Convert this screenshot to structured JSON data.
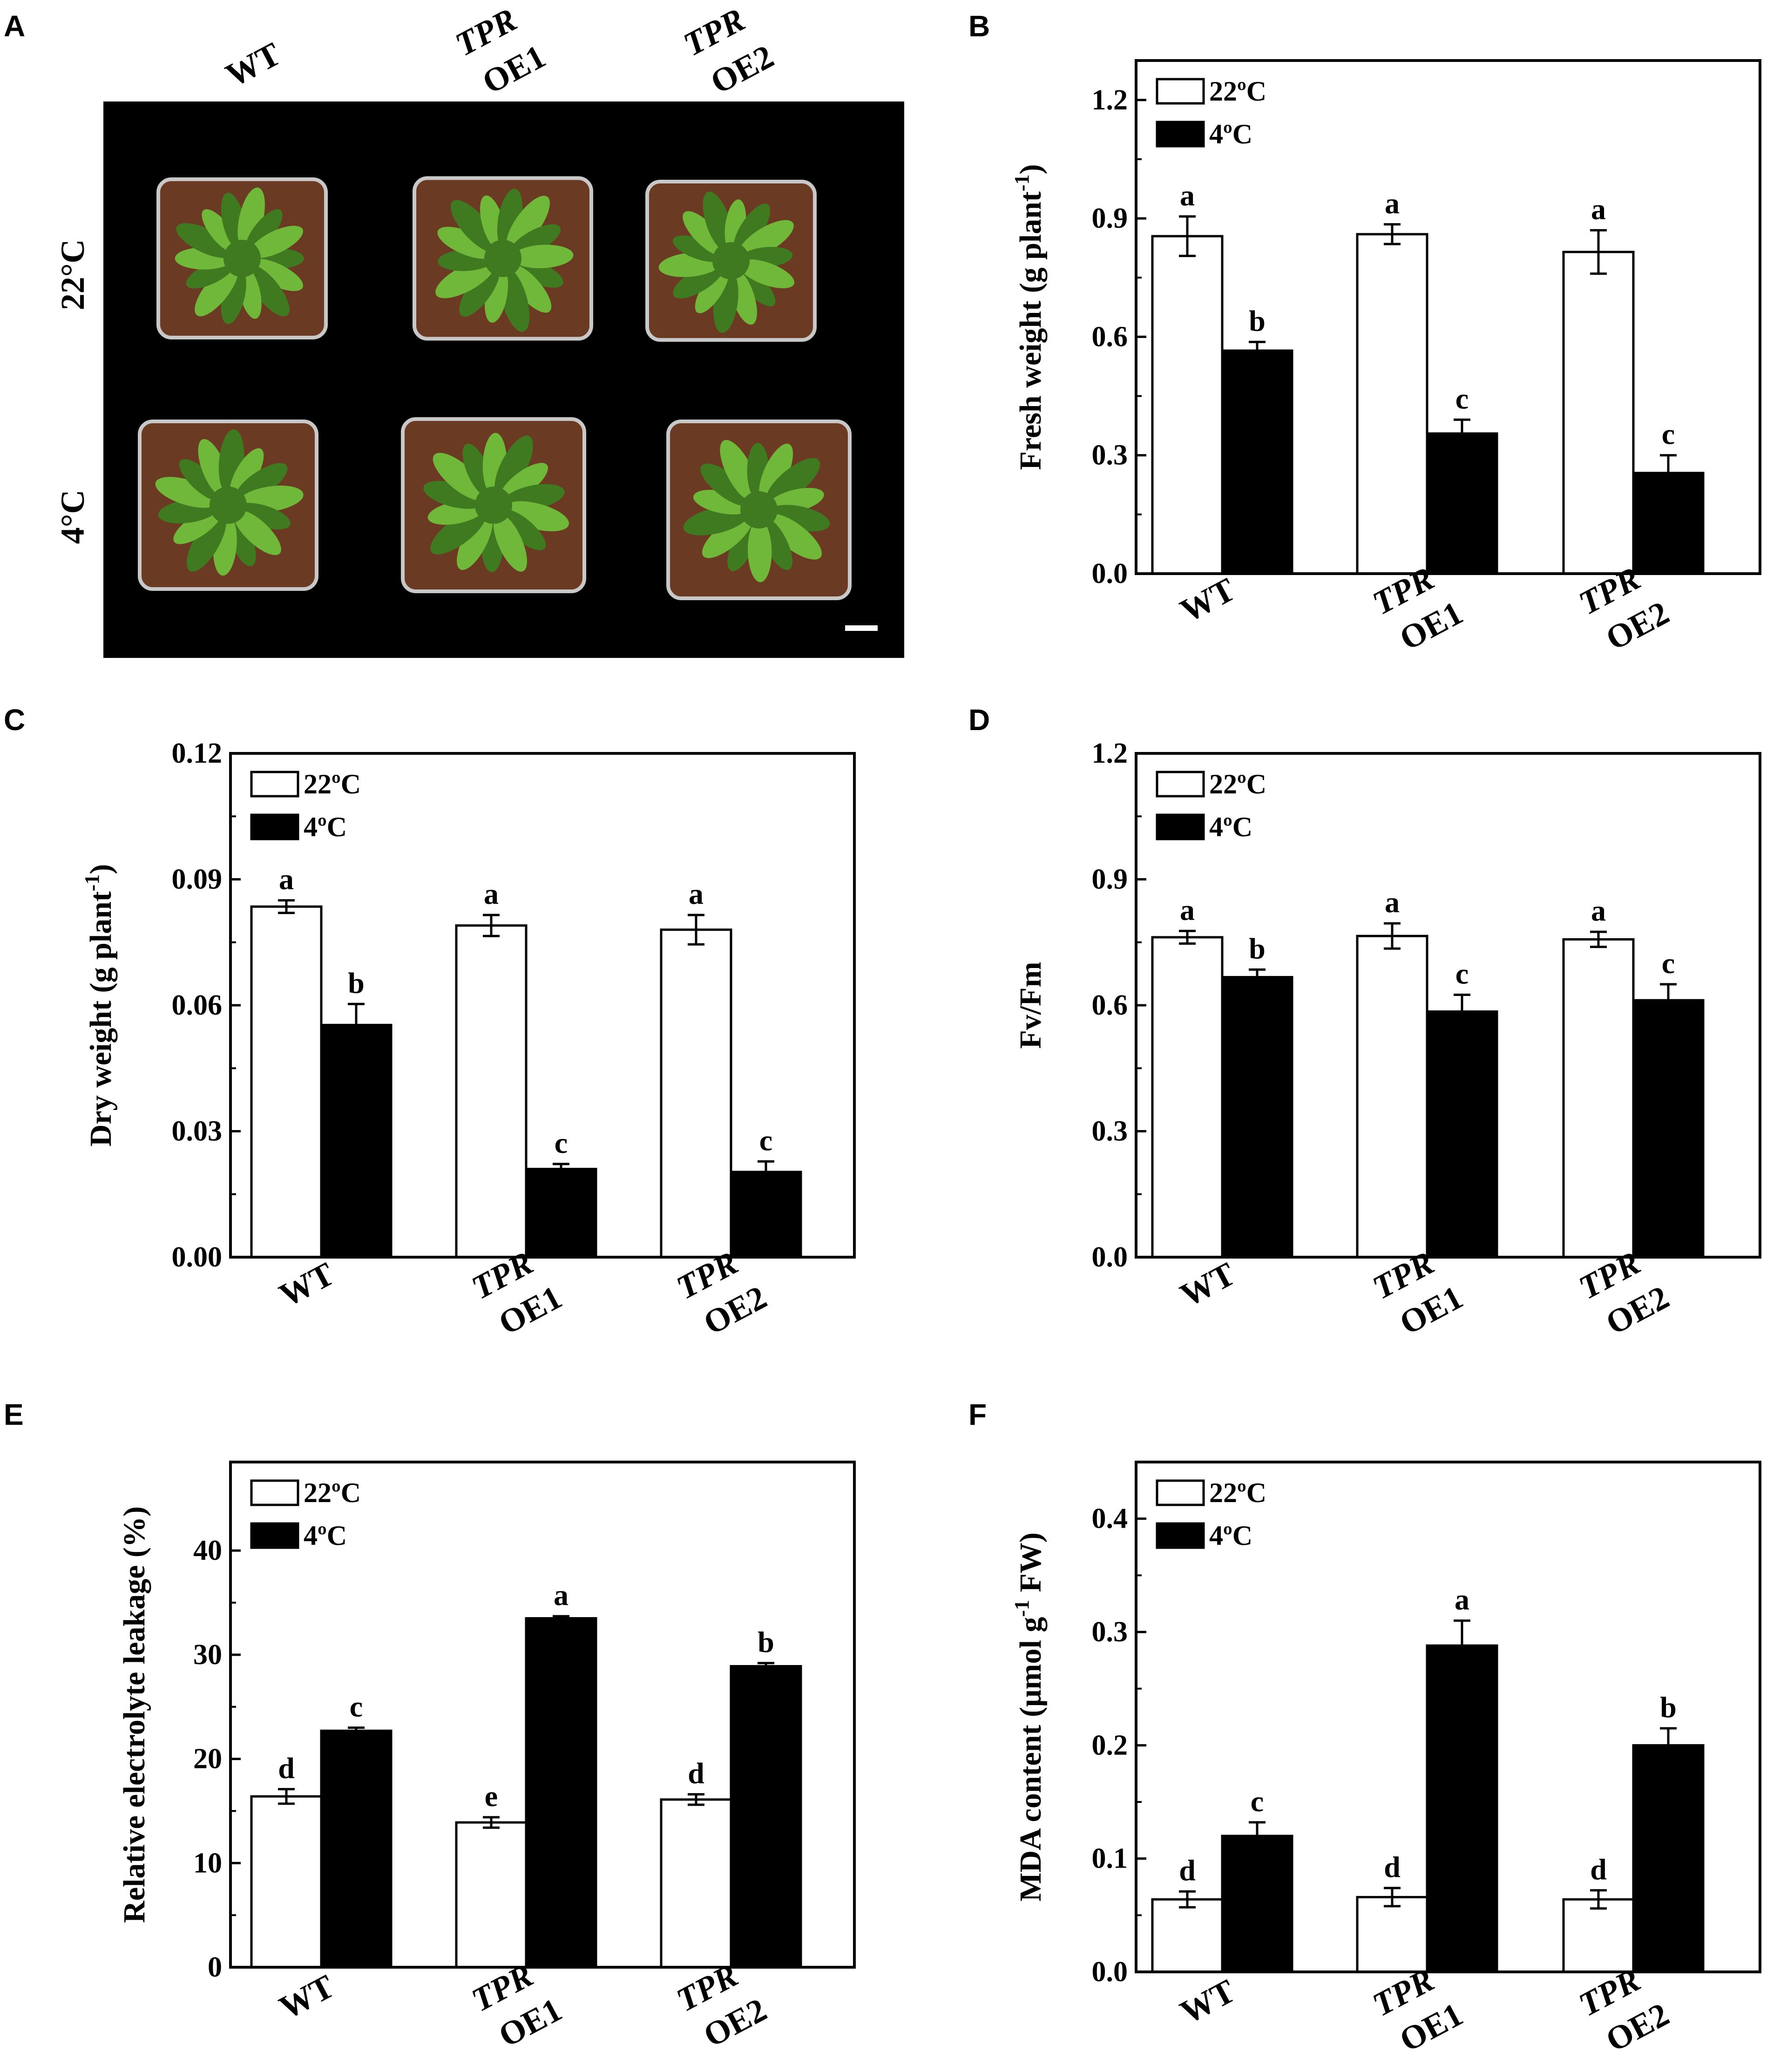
{
  "photo": {
    "letter": "A",
    "columns": [
      {
        "line1": "WT",
        "line2": ""
      },
      {
        "line1": "TPR",
        "line2": "OE1"
      },
      {
        "line1": "TPR",
        "line2": "OE2"
      }
    ],
    "rows": [
      "22°C",
      "4°C"
    ],
    "colors": {
      "background": "#000000",
      "leaf": "#6fb83a",
      "leaf_dark": "#3f7a20",
      "soil": "#6b3a22",
      "pot": "#c8c8c8"
    }
  },
  "chart_data": [
    {
      "letter": "B",
      "type": "bar",
      "categories": [
        {
          "line1": "WT",
          "line2": ""
        },
        {
          "line1": "TPR",
          "line2": "OE1"
        },
        {
          "line1": "TPR",
          "line2": "OE2"
        }
      ],
      "series": [
        {
          "name": "22ºC",
          "color": "#ffffff",
          "values": [
            0.855,
            0.86,
            0.815
          ],
          "errors": [
            0.05,
            0.025,
            0.055
          ],
          "labels": [
            "a",
            "a",
            "a"
          ]
        },
        {
          "name": "4ºC",
          "color": "#000000",
          "values": [
            0.565,
            0.355,
            0.255
          ],
          "errors": [
            0.022,
            0.035,
            0.045
          ],
          "labels": [
            "b",
            "c",
            "c"
          ]
        }
      ],
      "ylabel": {
        "pre": "Fresh weight (g plant",
        "sup": "-1",
        "post": ")"
      },
      "ylim": [
        0,
        1.3
      ],
      "yticks": [
        "0.0",
        "0.3",
        "0.6",
        "0.9",
        "1.2"
      ],
      "ytick_values": [
        0,
        0.3,
        0.6,
        0.9,
        1.2
      ],
      "legend": "top-left"
    },
    {
      "letter": "C",
      "type": "bar",
      "categories": [
        {
          "line1": "WT",
          "line2": ""
        },
        {
          "line1": "TPR",
          "line2": "OE1"
        },
        {
          "line1": "TPR",
          "line2": "OE2"
        }
      ],
      "series": [
        {
          "name": "22ºC",
          "color": "#ffffff",
          "values": [
            0.0835,
            0.079,
            0.078
          ],
          "errors": [
            0.0015,
            0.0025,
            0.0035
          ],
          "labels": [
            "a",
            "a",
            "a"
          ]
        },
        {
          "name": "4ºC",
          "color": "#000000",
          "values": [
            0.0553,
            0.021,
            0.0203
          ],
          "errors": [
            0.005,
            0.0012,
            0.0025
          ],
          "labels": [
            "b",
            "c",
            "c"
          ]
        }
      ],
      "ylabel": {
        "pre": "Dry weight (g plant",
        "sup": "-1",
        "post": ")"
      },
      "ylim": [
        0,
        0.12
      ],
      "yticks": [
        "0.00",
        "0.03",
        "0.06",
        "0.09",
        "0.12"
      ],
      "ytick_values": [
        0,
        0.03,
        0.06,
        0.09,
        0.12
      ],
      "legend": "top-left"
    },
    {
      "letter": "D",
      "type": "bar",
      "categories": [
        {
          "line1": "WT",
          "line2": ""
        },
        {
          "line1": "TPR",
          "line2": "OE1"
        },
        {
          "line1": "TPR",
          "line2": "OE2"
        }
      ],
      "series": [
        {
          "name": "22ºC",
          "color": "#ffffff",
          "values": [
            0.762,
            0.765,
            0.757
          ],
          "errors": [
            0.015,
            0.03,
            0.018
          ],
          "labels": [
            "a",
            "a",
            "a"
          ]
        },
        {
          "name": "4ºC",
          "color": "#000000",
          "values": [
            0.667,
            0.585,
            0.612
          ],
          "errors": [
            0.018,
            0.04,
            0.038
          ],
          "labels": [
            "b",
            "c",
            "c"
          ]
        }
      ],
      "ylabel": {
        "pre": "Fv/Fm",
        "sup": "",
        "post": ""
      },
      "ylim": [
        0,
        1.2
      ],
      "yticks": [
        "0.0",
        "0.3",
        "0.6",
        "0.9",
        "1.2"
      ],
      "ytick_values": [
        0,
        0.3,
        0.6,
        0.9,
        1.2
      ],
      "legend": "top-left"
    },
    {
      "letter": "E",
      "type": "bar",
      "categories": [
        {
          "line1": "WT",
          "line2": ""
        },
        {
          "line1": "TPR",
          "line2": "OE1"
        },
        {
          "line1": "TPR",
          "line2": "OE2"
        }
      ],
      "series": [
        {
          "name": "22ºC",
          "color": "#ffffff",
          "values": [
            16.4,
            13.9,
            16.1
          ],
          "errors": [
            0.7,
            0.5,
            0.5
          ],
          "labels": [
            "d",
            "e",
            "d"
          ]
        },
        {
          "name": "4ºC",
          "color": "#000000",
          "values": [
            22.7,
            33.5,
            28.9
          ],
          "errors": [
            0.3,
            0.2,
            0.3
          ],
          "labels": [
            "c",
            "a",
            "b"
          ]
        }
      ],
      "ylabel": {
        "pre": "Relative electrolyte leakage (%)",
        "sup": "",
        "post": ""
      },
      "ylim": [
        0,
        48.5
      ],
      "yticks": [
        "0",
        "10",
        "20",
        "30",
        "40"
      ],
      "ytick_values": [
        0,
        10,
        20,
        30,
        40
      ],
      "legend": "top-left"
    },
    {
      "letter": "F",
      "type": "bar",
      "categories": [
        {
          "line1": "WT",
          "line2": ""
        },
        {
          "line1": "TPR",
          "line2": "OE1"
        },
        {
          "line1": "TPR",
          "line2": "OE2"
        }
      ],
      "series": [
        {
          "name": "22ºC",
          "color": "#ffffff",
          "values": [
            0.064,
            0.066,
            0.064
          ],
          "errors": [
            0.007,
            0.008,
            0.008
          ],
          "labels": [
            "d",
            "d",
            "d"
          ]
        },
        {
          "name": "4ºC",
          "color": "#000000",
          "values": [
            0.12,
            0.288,
            0.2
          ],
          "errors": [
            0.012,
            0.022,
            0.015
          ],
          "labels": [
            "c",
            "a",
            "b"
          ]
        }
      ],
      "ylabel": {
        "pre": "MDA content (μmol g",
        "sup": "-1",
        "post": " FW)"
      },
      "ylim": [
        0,
        0.45
      ],
      "yticks": [
        "0.0",
        "0.1",
        "0.2",
        "0.3",
        "0.4"
      ],
      "ytick_values": [
        0,
        0.1,
        0.2,
        0.3,
        0.4
      ],
      "legend": "top-left"
    }
  ]
}
